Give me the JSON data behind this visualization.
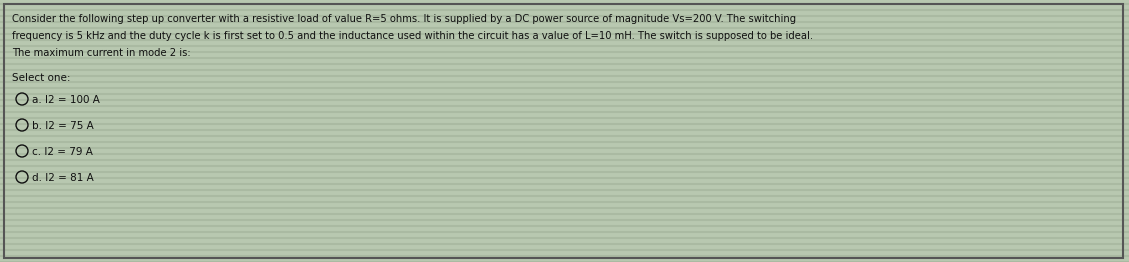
{
  "background_color": "#b8c8b0",
  "border_color": "#555555",
  "text_color": "#111111",
  "title_lines": [
    "Consider the following step up converter with a resistive load of value R=5 ohms. It is supplied by a DC power source of magnitude Vs=200 V. The switching",
    "frequency is 5 kHz and the duty cycle k is first set to 0.5 and the inductance used within the circuit has a value of L=10 mH. The switch is supposed to be ideal.",
    "The maximum current in mode 2 is:"
  ],
  "select_label": "Select one:",
  "options": [
    "a. I2 = 100 A",
    "b. I2 = 75 A",
    "c. I2 = 79 A",
    "d. I2 = 81 A"
  ],
  "font_size_title": 7.2,
  "font_size_options": 7.5,
  "font_size_select": 7.5
}
